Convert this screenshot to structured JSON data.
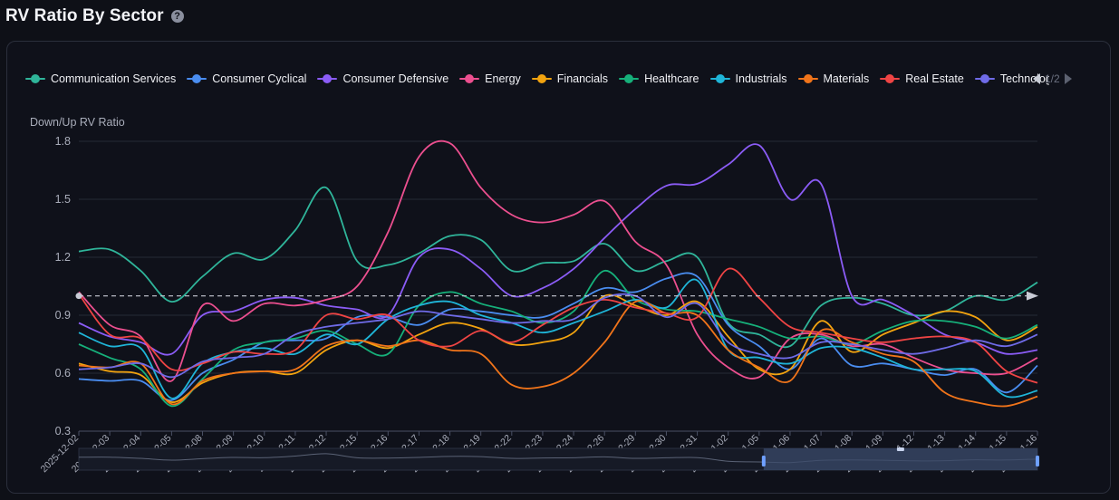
{
  "page": {
    "title": "RV Ratio By Sector",
    "help_glyph": "?"
  },
  "pager": {
    "label": "1/2"
  },
  "chart_data": {
    "type": "line",
    "ylabel": "Down/Up RV Ratio",
    "ylim": [
      0.3,
      1.8
    ],
    "yticks": [
      "0.3",
      "0.6",
      "0.9",
      "1.2",
      "1.5",
      "1.8"
    ],
    "grid": true,
    "legend_position": "top",
    "reference_line": 1.0,
    "x": [
      "2025-12-02",
      "2025-12-03",
      "2025-12-04",
      "2025-12-05",
      "2025-12-08",
      "2025-12-09",
      "2025-12-10",
      "2025-12-11",
      "2025-12-12",
      "2025-12-15",
      "2025-12-16",
      "2025-12-17",
      "2025-12-18",
      "2025-12-19",
      "2025-12-22",
      "2025-12-23",
      "2025-12-24",
      "2025-12-26",
      "2025-12-29",
      "2025-12-30",
      "2025-12-31",
      "2026-01-02",
      "2026-01-05",
      "2026-01-06",
      "2026-01-07",
      "2026-01-08",
      "2026-01-09",
      "2026-01-12",
      "2026-01-13",
      "2026-01-14",
      "2026-01-15",
      "2026-01-16"
    ],
    "series": [
      {
        "name": "Communication Services",
        "color": "#2fb59a",
        "values": [
          1.23,
          1.24,
          1.13,
          0.97,
          1.1,
          1.22,
          1.19,
          1.34,
          1.56,
          1.18,
          1.16,
          1.22,
          1.31,
          1.29,
          1.13,
          1.17,
          1.18,
          1.27,
          1.13,
          1.18,
          1.2,
          0.86,
          0.8,
          0.74,
          0.95,
          0.99,
          0.96,
          0.9,
          0.92,
          1.0,
          0.98,
          1.07
        ]
      },
      {
        "name": "Consumer Cyclical",
        "color": "#4a8df0",
        "values": [
          0.57,
          0.56,
          0.56,
          0.46,
          0.6,
          0.67,
          0.76,
          0.77,
          0.78,
          0.89,
          0.89,
          0.85,
          0.93,
          0.92,
          0.9,
          0.89,
          0.96,
          1.04,
          1.02,
          1.09,
          1.1,
          0.85,
          0.74,
          0.62,
          0.78,
          0.64,
          0.65,
          0.62,
          0.59,
          0.62,
          0.5,
          0.64
        ]
      },
      {
        "name": "Consumer Defensive",
        "color": "#8b5cf6",
        "values": [
          0.86,
          0.79,
          0.76,
          0.7,
          0.9,
          0.92,
          0.98,
          0.99,
          0.95,
          0.93,
          0.9,
          1.2,
          1.24,
          1.14,
          1.0,
          1.04,
          1.14,
          1.3,
          1.45,
          1.57,
          1.58,
          1.68,
          1.78,
          1.5,
          1.58,
          1.0,
          0.98,
          0.9,
          0.8,
          0.76,
          0.7,
          0.72
        ]
      },
      {
        "name": "Energy",
        "color": "#ec4f8f",
        "values": [
          1.02,
          0.85,
          0.79,
          0.56,
          0.95,
          0.87,
          0.96,
          0.95,
          0.98,
          1.05,
          1.33,
          1.72,
          1.79,
          1.56,
          1.42,
          1.38,
          1.42,
          1.49,
          1.28,
          1.16,
          0.8,
          0.63,
          0.58,
          0.78,
          0.8,
          0.74,
          0.75,
          0.68,
          0.62,
          0.6,
          0.6,
          0.68
        ]
      },
      {
        "name": "Financials",
        "color": "#f2a30f",
        "values": [
          0.65,
          0.61,
          0.59,
          0.45,
          0.55,
          0.6,
          0.61,
          0.6,
          0.72,
          0.77,
          0.73,
          0.8,
          0.86,
          0.83,
          0.75,
          0.76,
          0.81,
          1.0,
          0.95,
          0.9,
          0.97,
          0.79,
          0.62,
          0.62,
          0.87,
          0.71,
          0.8,
          0.86,
          0.92,
          0.89,
          0.77,
          0.84
        ]
      },
      {
        "name": "Healthcare",
        "color": "#16b07a",
        "values": [
          0.75,
          0.68,
          0.62,
          0.43,
          0.57,
          0.72,
          0.76,
          0.78,
          0.82,
          0.75,
          0.7,
          0.95,
          1.02,
          0.96,
          0.92,
          0.86,
          0.92,
          1.13,
          0.98,
          0.93,
          0.92,
          0.88,
          0.84,
          0.78,
          0.79,
          0.75,
          0.82,
          0.87,
          0.87,
          0.84,
          0.78,
          0.85
        ]
      },
      {
        "name": "Industrials",
        "color": "#1fb5d8",
        "values": [
          0.81,
          0.74,
          0.73,
          0.47,
          0.65,
          0.71,
          0.73,
          0.7,
          0.8,
          0.75,
          0.88,
          0.95,
          0.97,
          0.9,
          0.86,
          0.81,
          0.86,
          0.92,
          0.98,
          0.94,
          1.08,
          0.72,
          0.68,
          0.65,
          0.73,
          0.73,
          0.68,
          0.62,
          0.62,
          0.61,
          0.48,
          0.51
        ]
      },
      {
        "name": "Materials",
        "color": "#f0741a",
        "values": [
          0.64,
          0.63,
          0.65,
          0.44,
          0.56,
          0.6,
          0.61,
          0.62,
          0.74,
          0.77,
          0.74,
          0.77,
          0.72,
          0.7,
          0.54,
          0.53,
          0.6,
          0.76,
          0.97,
          0.91,
          0.9,
          0.72,
          0.63,
          0.56,
          0.82,
          0.76,
          0.7,
          0.66,
          0.5,
          0.45,
          0.43,
          0.48
        ]
      },
      {
        "name": "Real Estate",
        "color": "#ef4444",
        "values": [
          1.01,
          0.8,
          0.78,
          0.62,
          0.65,
          0.71,
          0.7,
          0.72,
          0.9,
          0.88,
          0.9,
          0.77,
          0.74,
          0.82,
          0.76,
          0.85,
          0.94,
          0.98,
          0.94,
          0.91,
          0.89,
          1.14,
          0.99,
          0.84,
          0.81,
          0.78,
          0.76,
          0.78,
          0.79,
          0.76,
          0.61,
          0.55
        ]
      },
      {
        "name": "Technology",
        "color": "#6f6be8",
        "values": [
          0.62,
          0.63,
          0.65,
          0.58,
          0.66,
          0.68,
          0.7,
          0.8,
          0.84,
          0.86,
          0.88,
          0.92,
          0.9,
          0.88,
          0.86,
          0.87,
          0.88,
          0.99,
          1.0,
          0.89,
          0.96,
          0.76,
          0.7,
          0.68,
          0.76,
          0.75,
          0.72,
          0.7,
          0.73,
          0.77,
          0.74,
          0.8
        ]
      }
    ]
  },
  "colors": {
    "reference_line": "#c9ccd6",
    "grid": "#262a36",
    "slider_fill": "#3a4a6a",
    "slider_handle": "#6fa0ff"
  }
}
